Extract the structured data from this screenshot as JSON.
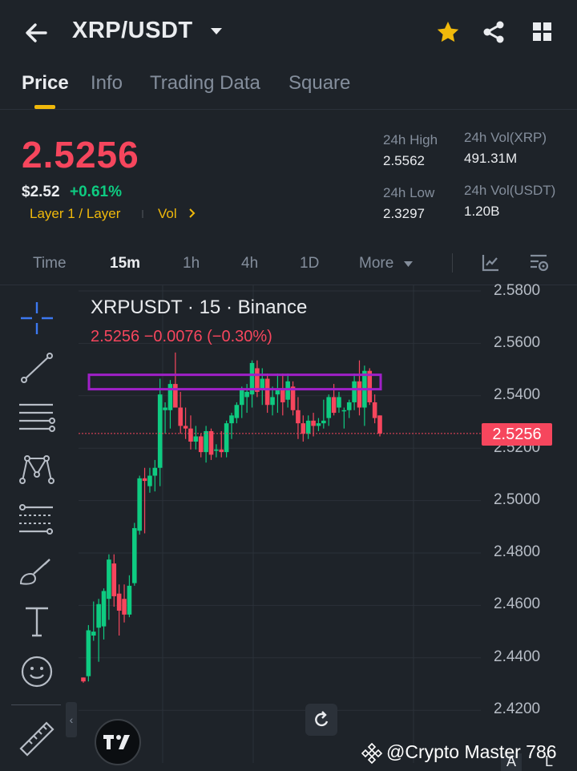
{
  "header": {
    "pair": "XRP/USDT"
  },
  "tabs": [
    "Price",
    "Info",
    "Trading Data",
    "Square"
  ],
  "ticker": {
    "last_price": "2.5256",
    "usd_price": "$2.52",
    "change_pct": "+0.61%",
    "tag_category": "Layer 1 / Layer",
    "tag_vol": "Vol"
  },
  "stats": {
    "high_label": "24h High",
    "high_value": "2.5562",
    "low_label": "24h Low",
    "low_value": "2.3297",
    "vol_base_label": "24h Vol(XRP)",
    "vol_base_value": "491.31M",
    "vol_quote_label": "24h Vol(USDT)",
    "vol_quote_value": "1.20B"
  },
  "intervals": {
    "time": "Time",
    "m15": "15m",
    "h1": "1h",
    "h4": "4h",
    "d1": "1D",
    "more": "More"
  },
  "chart_legend": {
    "title": "XRPUSDT · 15 · Binance",
    "ohlc": "2.5256  −0.0076 (−0.30%)"
  },
  "current_price_tag": "2.5256",
  "bottom": {
    "a": "A",
    "l": "L"
  },
  "watermark": "@Crypto Master 786",
  "colors": {
    "up": "#0ecb81",
    "down": "#f6465d",
    "accent": "#f0b90b",
    "highlight_box": "#a020c8",
    "bg": "#1e2329"
  },
  "chart_data": {
    "type": "candlestick",
    "symbol": "XRPUSDT",
    "interval": "15",
    "exchange": "Binance",
    "y_ticks": [
      "2.5800",
      "2.5600",
      "2.5400",
      "2.5200",
      "2.5000",
      "2.4800",
      "2.4600",
      "2.4400",
      "2.4200"
    ],
    "ylim": [
      2.4165,
      2.5845
    ],
    "last_price_line": 2.5256,
    "resistance_zone": [
      2.5425,
      2.548
    ],
    "candles": [
      {
        "o": 2.4325,
        "h": 2.4325,
        "l": 2.4305,
        "c": 2.431
      },
      {
        "o": 2.433,
        "h": 2.4525,
        "l": 2.431,
        "c": 2.4505
      },
      {
        "o": 2.4485,
        "h": 2.4615,
        "l": 2.4465,
        "c": 2.45
      },
      {
        "o": 2.4515,
        "h": 2.4625,
        "l": 2.4385,
        "c": 2.4605
      },
      {
        "o": 2.452,
        "h": 2.4665,
        "l": 2.447,
        "c": 2.4655
      },
      {
        "o": 2.4625,
        "h": 2.4795,
        "l": 2.4545,
        "c": 2.4775
      },
      {
        "o": 2.476,
        "h": 2.4795,
        "l": 2.4595,
        "c": 2.4635
      },
      {
        "o": 2.4645,
        "h": 2.468,
        "l": 2.4485,
        "c": 2.458
      },
      {
        "o": 2.4625,
        "h": 2.468,
        "l": 2.4535,
        "c": 2.4565
      },
      {
        "o": 2.4565,
        "h": 2.4715,
        "l": 2.4555,
        "c": 2.4675
      },
      {
        "o": 2.4685,
        "h": 2.4915,
        "l": 2.4675,
        "c": 2.4895
      },
      {
        "o": 2.4885,
        "h": 2.5095,
        "l": 2.487,
        "c": 2.5085
      },
      {
        "o": 2.5085,
        "h": 2.5125,
        "l": 2.4875,
        "c": 2.5075
      },
      {
        "o": 2.5055,
        "h": 2.5125,
        "l": 2.503,
        "c": 2.5095
      },
      {
        "o": 2.5095,
        "h": 2.5155,
        "l": 2.5035,
        "c": 2.5125
      },
      {
        "o": 2.5125,
        "h": 2.5465,
        "l": 2.5055,
        "c": 2.5405
      },
      {
        "o": 2.5345,
        "h": 2.5375,
        "l": 2.5255,
        "c": 2.5355
      },
      {
        "o": 2.5345,
        "h": 2.546,
        "l": 2.5275,
        "c": 2.5445
      },
      {
        "o": 2.5445,
        "h": 2.5565,
        "l": 2.537,
        "c": 2.5355
      },
      {
        "o": 2.5355,
        "h": 2.5415,
        "l": 2.5255,
        "c": 2.5285
      },
      {
        "o": 2.5285,
        "h": 2.5355,
        "l": 2.5235,
        "c": 2.5275
      },
      {
        "o": 2.5275,
        "h": 2.5325,
        "l": 2.5195,
        "c": 2.5225
      },
      {
        "o": 2.5225,
        "h": 2.5285,
        "l": 2.5195,
        "c": 2.5245
      },
      {
        "o": 2.5245,
        "h": 2.5255,
        "l": 2.5165,
        "c": 2.5185
      },
      {
        "o": 2.5185,
        "h": 2.5285,
        "l": 2.5145,
        "c": 2.5265
      },
      {
        "o": 2.5265,
        "h": 2.5275,
        "l": 2.5155,
        "c": 2.5175
      },
      {
        "o": 2.519,
        "h": 2.5215,
        "l": 2.5165,
        "c": 2.5195
      },
      {
        "o": 2.5195,
        "h": 2.5265,
        "l": 2.5165,
        "c": 2.5185
      },
      {
        "o": 2.5185,
        "h": 2.5305,
        "l": 2.5165,
        "c": 2.5295
      },
      {
        "o": 2.5295,
        "h": 2.5335,
        "l": 2.5235,
        "c": 2.5325
      },
      {
        "o": 2.5315,
        "h": 2.5375,
        "l": 2.5295,
        "c": 2.5365
      },
      {
        "o": 2.5365,
        "h": 2.5435,
        "l": 2.5315,
        "c": 2.5425
      },
      {
        "o": 2.5395,
        "h": 2.5445,
        "l": 2.5335,
        "c": 2.5415
      },
      {
        "o": 2.5405,
        "h": 2.5535,
        "l": 2.5355,
        "c": 2.5525
      },
      {
        "o": 2.5505,
        "h": 2.5535,
        "l": 2.5395,
        "c": 2.5415
      },
      {
        "o": 2.5425,
        "h": 2.5505,
        "l": 2.5365,
        "c": 2.5465
      },
      {
        "o": 2.5465,
        "h": 2.5485,
        "l": 2.5335,
        "c": 2.5365
      },
      {
        "o": 2.5365,
        "h": 2.5435,
        "l": 2.5325,
        "c": 2.5395
      },
      {
        "o": 2.5405,
        "h": 2.5485,
        "l": 2.5335,
        "c": 2.5425
      },
      {
        "o": 2.5425,
        "h": 2.5485,
        "l": 2.5325,
        "c": 2.5375
      },
      {
        "o": 2.5385,
        "h": 2.5485,
        "l": 2.5355,
        "c": 2.5455
      },
      {
        "o": 2.5435,
        "h": 2.5455,
        "l": 2.5325,
        "c": 2.5345
      },
      {
        "o": 2.5345,
        "h": 2.5395,
        "l": 2.5235,
        "c": 2.5295
      },
      {
        "o": 2.5295,
        "h": 2.5325,
        "l": 2.5225,
        "c": 2.5255
      },
      {
        "o": 2.5255,
        "h": 2.5325,
        "l": 2.5235,
        "c": 2.5305
      },
      {
        "o": 2.5305,
        "h": 2.5335,
        "l": 2.5245,
        "c": 2.5285
      },
      {
        "o": 2.5285,
        "h": 2.5315,
        "l": 2.5265,
        "c": 2.5295
      },
      {
        "o": 2.5295,
        "h": 2.5385,
        "l": 2.5275,
        "c": 2.5305
      },
      {
        "o": 2.5315,
        "h": 2.5405,
        "l": 2.5285,
        "c": 2.5395
      },
      {
        "o": 2.5395,
        "h": 2.5445,
        "l": 2.5325,
        "c": 2.5335
      },
      {
        "o": 2.5355,
        "h": 2.5415,
        "l": 2.5335,
        "c": 2.5395
      },
      {
        "o": 2.5345,
        "h": 2.5355,
        "l": 2.5275,
        "c": 2.5345
      },
      {
        "o": 2.5345,
        "h": 2.5385,
        "l": 2.5315,
        "c": 2.5375
      },
      {
        "o": 2.5375,
        "h": 2.5485,
        "l": 2.5345,
        "c": 2.5455
      },
      {
        "o": 2.5455,
        "h": 2.5535,
        "l": 2.5325,
        "c": 2.5355
      },
      {
        "o": 2.5355,
        "h": 2.5515,
        "l": 2.5285,
        "c": 2.5495
      },
      {
        "o": 2.5495,
        "h": 2.5505,
        "l": 2.5365,
        "c": 2.5375
      },
      {
        "o": 2.5375,
        "h": 2.5405,
        "l": 2.5295,
        "c": 2.5315
      },
      {
        "o": 2.5325,
        "h": 2.5325,
        "l": 2.5245,
        "c": 2.5256
      }
    ]
  }
}
